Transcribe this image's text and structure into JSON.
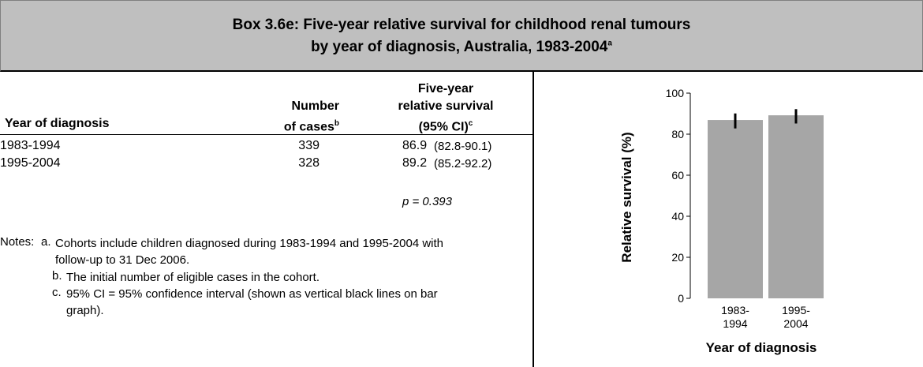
{
  "header": {
    "title_line1": "Box 3.6e: Five-year relative survival for childhood renal tumours",
    "title_line2": "by year of diagnosis, Australia, 1983-2004",
    "title_sup": "a"
  },
  "table": {
    "columns": [
      {
        "text": "Year of diagnosis"
      },
      {
        "lines": [
          "Number",
          "of cases"
        ],
        "sup": "b"
      },
      {
        "lines": [
          "Five-year",
          "relative survival",
          "(95% CI)"
        ],
        "sup": "c"
      }
    ],
    "rows": [
      [
        "1983-1994",
        "339",
        "86.9",
        "(82.8-90.1)"
      ],
      [
        "1995-2004",
        "328",
        "89.2",
        "(85.2-92.2)"
      ]
    ],
    "p_value": "p = 0.393"
  },
  "notes": {
    "label": "Notes:",
    "items": [
      {
        "marker": "a.",
        "text": "Cohorts include children diagnosed during 1983-1994 and 1995-2004 with follow-up to 31 Dec 2006."
      },
      {
        "marker": "b.",
        "text": "The initial number of eligible cases in the cohort."
      },
      {
        "marker": "c.",
        "text": "95% CI = 95% confidence interval (shown as vertical black lines on bar graph)."
      }
    ]
  },
  "chart_data": {
    "type": "bar",
    "xlabel": "Year of diagnosis",
    "ylabel": "Relative survival (%)",
    "categories": [
      [
        "1983-",
        "1994"
      ],
      [
        "1995-",
        "2004"
      ]
    ],
    "values": [
      86.9,
      89.2
    ],
    "ci_low": [
      82.8,
      85.2
    ],
    "ci_high": [
      90.1,
      92.2
    ],
    "color": "#a6a6a6",
    "error_color": "#000000",
    "ylim": [
      0,
      100
    ],
    "yticks": [
      0,
      20,
      40,
      60,
      80,
      100
    ],
    "grid": false
  }
}
